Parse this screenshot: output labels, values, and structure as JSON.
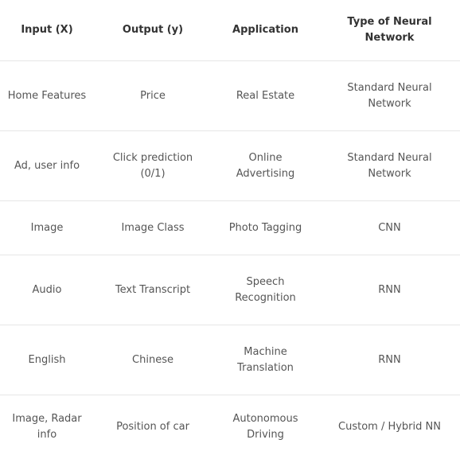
{
  "table": {
    "headers": [
      "Input (X)",
      "Output (y)",
      "Application",
      "Type of Neural Network"
    ],
    "rows": [
      [
        "Home Features",
        "Price",
        "Real Estate",
        "Standard Neural Network"
      ],
      [
        "Ad, user info",
        "Click prediction (0/1)",
        "Online Advertising",
        "Standard Neural Network"
      ],
      [
        "Image",
        "Image Class",
        "Photo Tagging",
        "CNN"
      ],
      [
        "Audio",
        "Text Transcript",
        "Speech Recognition",
        "RNN"
      ],
      [
        "English",
        "Chinese",
        "Machine Translation",
        "RNN"
      ],
      [
        "Image, Radar info",
        "Position of car",
        "Autonomous Driving",
        "Custom / Hybrid NN"
      ]
    ]
  }
}
